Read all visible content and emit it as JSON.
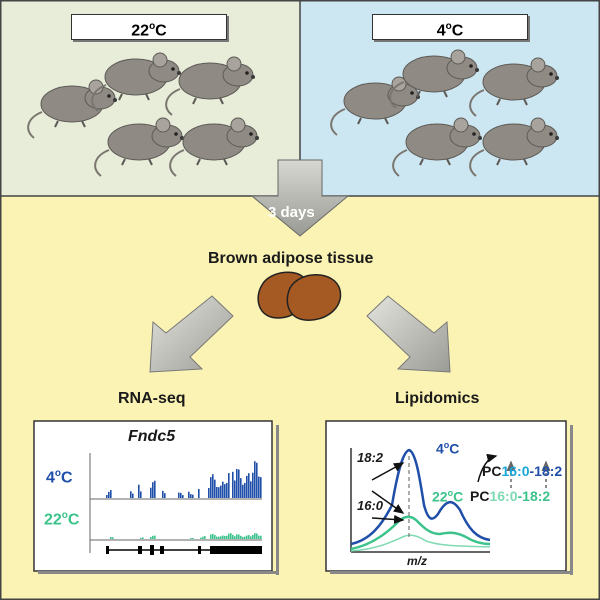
{
  "conditions": {
    "warm": {
      "label": "22",
      "unit": "C"
    },
    "cold": {
      "label": "4",
      "unit": "C"
    }
  },
  "arrow_label": "3 days",
  "tissue_label": "Brown adipose tissue",
  "rnaseq": {
    "title": "RNA-seq",
    "gene": "Fndc5",
    "track_top_temp": "4",
    "track_bottom_temp": "22",
    "unit": "C"
  },
  "lipidomics": {
    "title": "Lipidomics",
    "peak1": "18:2",
    "peak2": "16:0",
    "axis": "m/z",
    "cold_temp": "4",
    "warm_temp": "22",
    "unit": "C",
    "pc": "PC",
    "fa1": "16:0",
    "sep": "-",
    "fa2": "18:2"
  },
  "colors": {
    "warm_bg": "#e8edda",
    "cold_bg": "#cde7f2",
    "bottom_bg": "#fbf3b4",
    "blue": "#1f4fa8",
    "green": "#3cc38b",
    "lightblue": "#1aa6d8",
    "tissue": "#a55a24",
    "mouse": "#8f8b84"
  }
}
